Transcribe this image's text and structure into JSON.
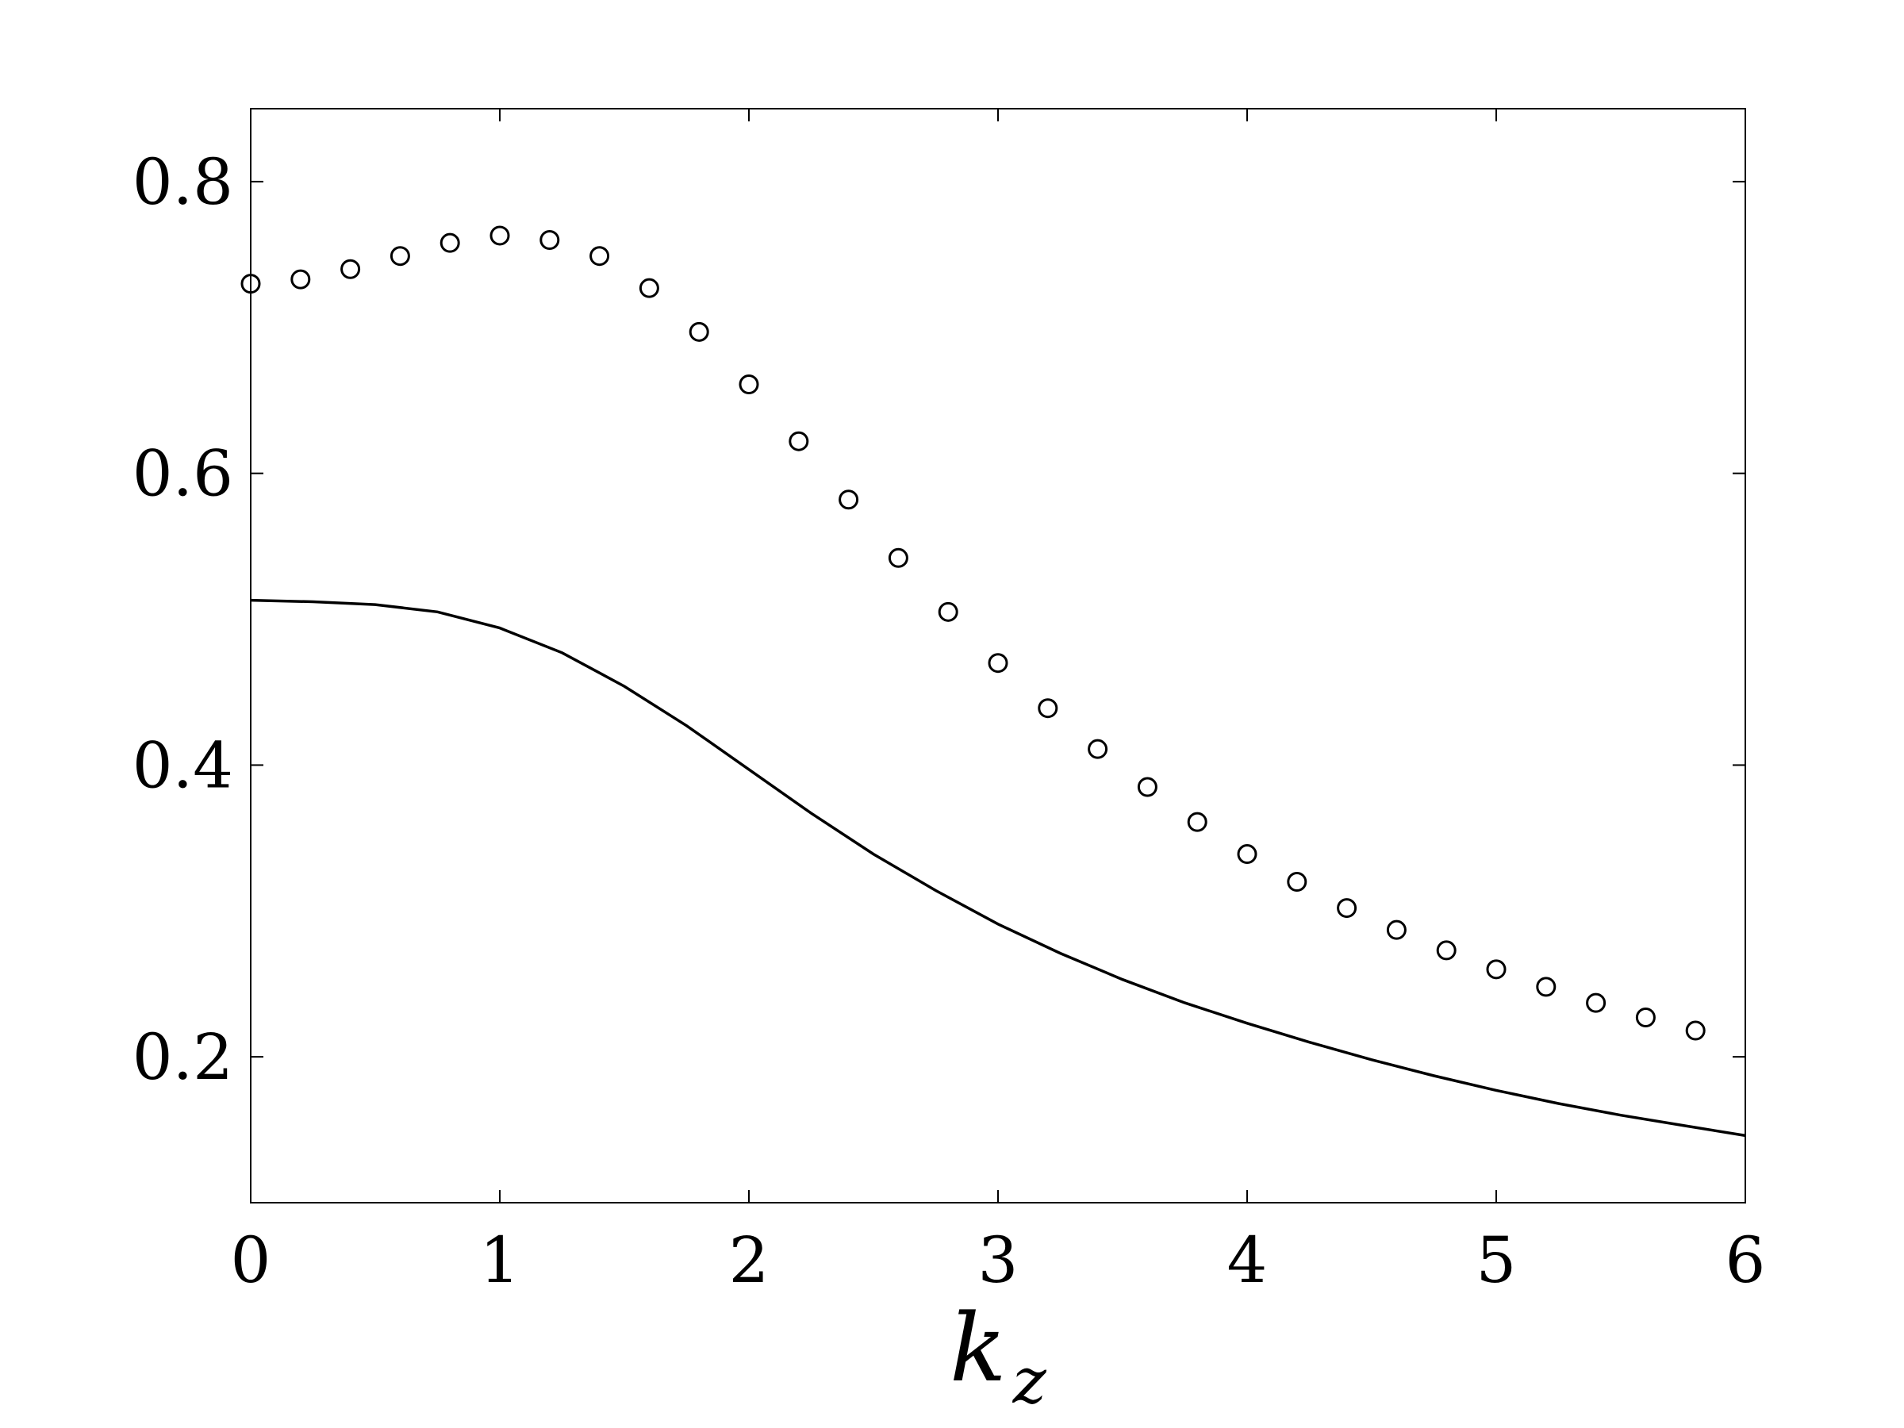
{
  "chart_data": {
    "type": "scatter",
    "title": "",
    "xlabel": "k",
    "xlabel_sub": "z",
    "ylabel": "",
    "xlim": [
      0,
      6
    ],
    "ylim": [
      0.1,
      0.85
    ],
    "xticks": [
      0,
      1,
      2,
      3,
      4,
      5,
      6
    ],
    "yticks": [
      0.2,
      0.4,
      0.6,
      0.8
    ],
    "xtick_labels": [
      "0",
      "1",
      "2",
      "3",
      "4",
      "5",
      "6"
    ],
    "ytick_labels": [
      "0.2",
      "0.4",
      "0.6",
      "0.8"
    ],
    "grid": false,
    "legend": "none",
    "series": [
      {
        "style": "circle-markers",
        "color": "#000000",
        "x": [
          0.0,
          0.2,
          0.4,
          0.6,
          0.8,
          1.0,
          1.2,
          1.4,
          1.6,
          1.8,
          2.0,
          2.2,
          2.4,
          2.6,
          2.8,
          3.0,
          3.2,
          3.4,
          3.6,
          3.8,
          4.0,
          4.2,
          4.4,
          4.6,
          4.8,
          5.0,
          5.2,
          5.4,
          5.6,
          5.8
        ],
        "y": [
          0.73,
          0.733,
          0.74,
          0.749,
          0.758,
          0.763,
          0.76,
          0.749,
          0.727,
          0.697,
          0.661,
          0.622,
          0.582,
          0.542,
          0.505,
          0.47,
          0.439,
          0.411,
          0.385,
          0.361,
          0.339,
          0.32,
          0.302,
          0.287,
          0.273,
          0.26,
          0.248,
          0.237,
          0.227,
          0.218
        ]
      },
      {
        "style": "solid-line",
        "color": "#000000",
        "x": [
          0.0,
          0.25,
          0.5,
          0.75,
          1.0,
          1.25,
          1.5,
          1.75,
          2.0,
          2.25,
          2.5,
          2.75,
          3.0,
          3.25,
          3.5,
          3.75,
          4.0,
          4.25,
          4.5,
          4.75,
          5.0,
          5.25,
          5.5,
          5.75,
          6.0
        ],
        "y": [
          0.513,
          0.512,
          0.51,
          0.505,
          0.494,
          0.477,
          0.454,
          0.427,
          0.397,
          0.367,
          0.339,
          0.314,
          0.291,
          0.271,
          0.253,
          0.237,
          0.223,
          0.21,
          0.198,
          0.187,
          0.177,
          0.168,
          0.16,
          0.153,
          0.146
        ]
      }
    ]
  }
}
